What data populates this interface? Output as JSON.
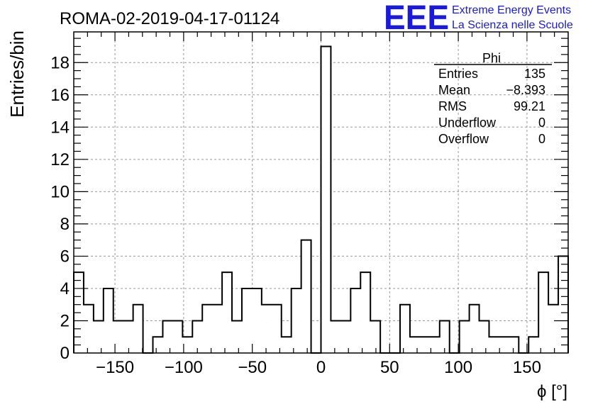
{
  "header": {
    "title": "ROMA-02-2019-04-17-01124",
    "logo_text": "EEE",
    "logo_line1": "Extreme Energy Events",
    "logo_line2": "La Scienza nelle Scuole",
    "logo_color": "#1a1adc"
  },
  "stats": {
    "name": "Phi",
    "rows": [
      {
        "label": "Entries",
        "value": "135"
      },
      {
        "label": "Mean",
        "value": "−8.393"
      },
      {
        "label": "RMS",
        "value": "99.21"
      },
      {
        "label": "Underflow",
        "value": "0"
      },
      {
        "label": "Overflow",
        "value": "0"
      }
    ]
  },
  "chart_data": {
    "type": "bar",
    "title": "ROMA-02-2019-04-17-01124",
    "xlabel": "ϕ [°]",
    "ylabel": "Entries/bin",
    "xlim": [
      -180,
      180
    ],
    "ylim": [
      0,
      19.9
    ],
    "bin_width": 7.2,
    "grid": true,
    "xticks": [
      -150,
      -100,
      -50,
      0,
      50,
      100,
      150
    ],
    "xtick_labels": [
      "−150",
      "−100",
      "−50",
      "0",
      "50",
      "100",
      "150"
    ],
    "yticks": [
      0,
      2,
      4,
      6,
      8,
      10,
      12,
      14,
      16,
      18
    ],
    "values": [
      5,
      3,
      2,
      4,
      2,
      2,
      3,
      0,
      1,
      2,
      2,
      1,
      2,
      3,
      3,
      5,
      2,
      4,
      4,
      3,
      3,
      1,
      4,
      7,
      0,
      19,
      2,
      2,
      4,
      5,
      2,
      0,
      0,
      3,
      1,
      1,
      1,
      2,
      0,
      2,
      3,
      2,
      1,
      1,
      1,
      0,
      1,
      5,
      3,
      6
    ]
  }
}
